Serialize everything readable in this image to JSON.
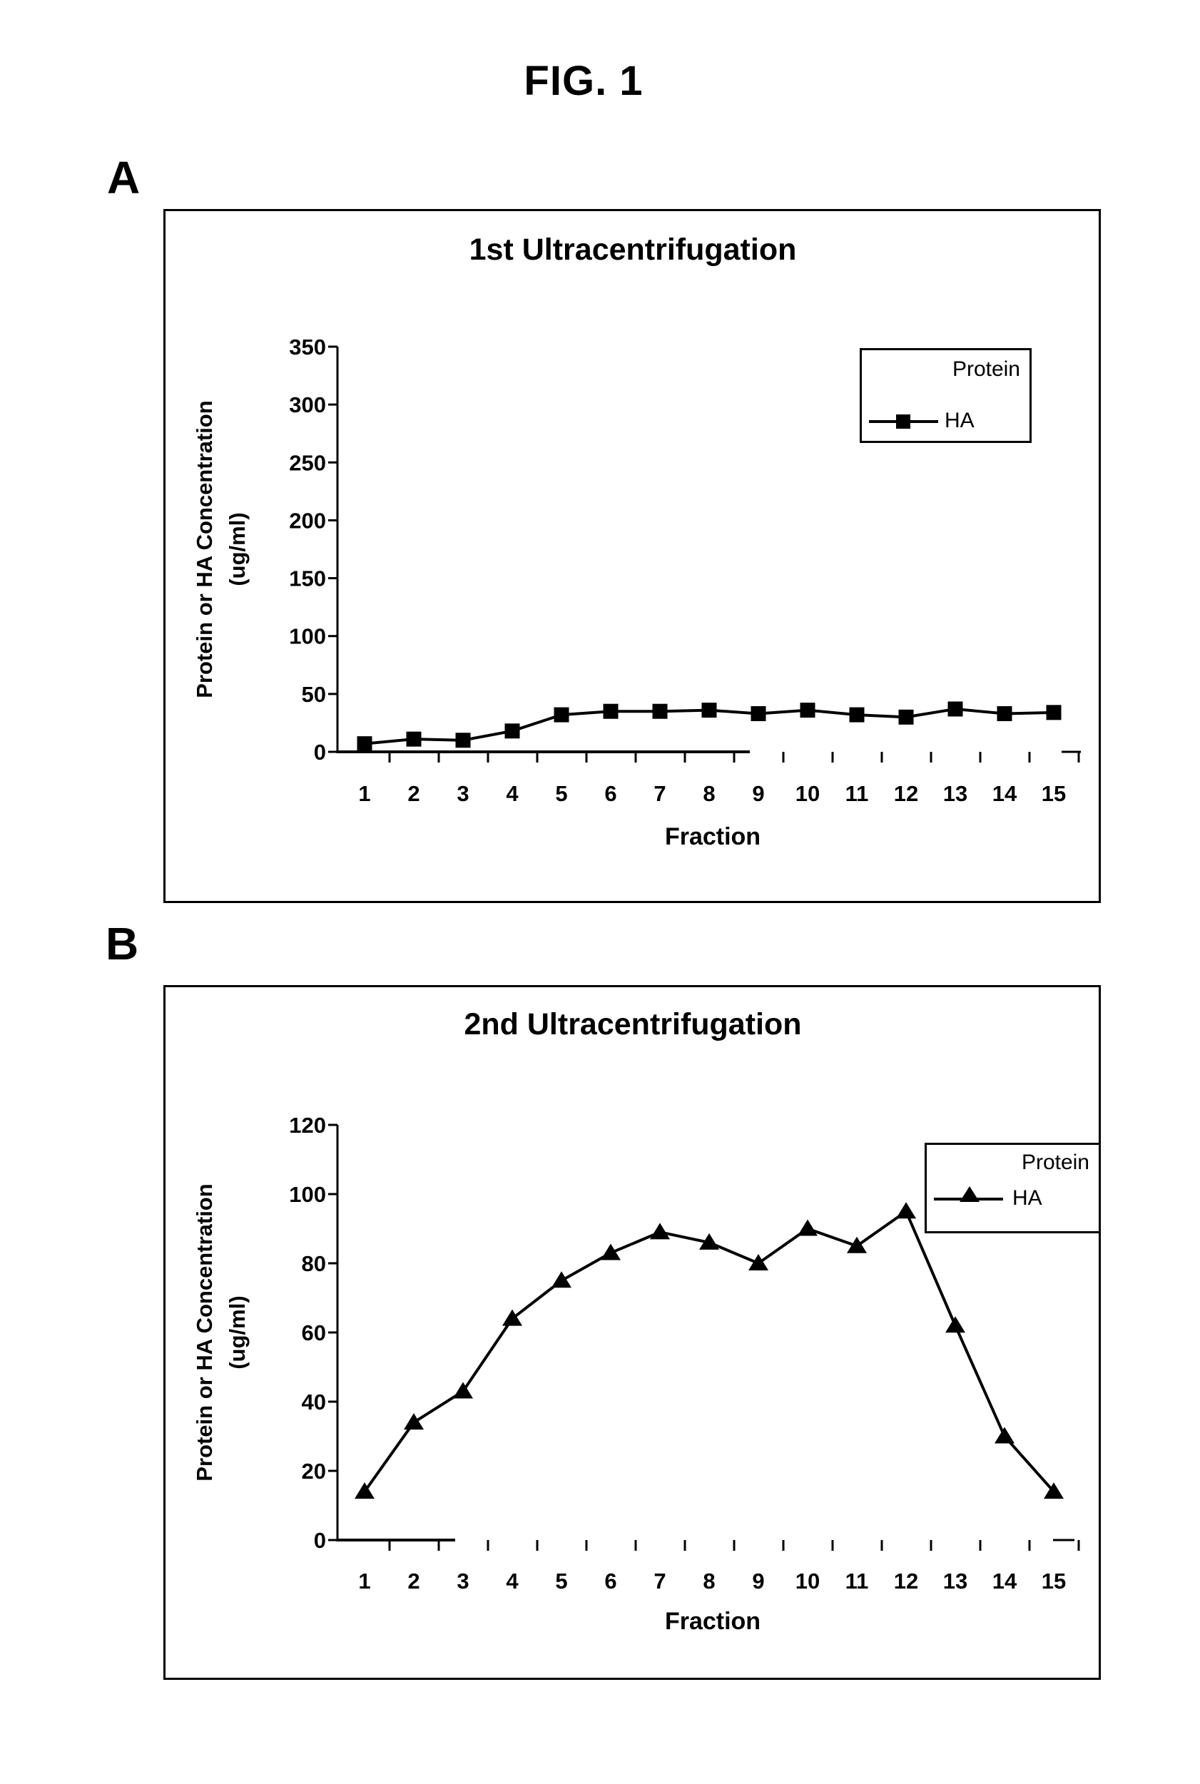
{
  "figure": {
    "title": "FIG. 1"
  },
  "chart_data": [
    {
      "type": "line",
      "panel_label": "A",
      "title": "1st Ultracentrifugation",
      "xlabel": "Fraction",
      "ylabel_line1": "Protein or HA Concentration",
      "ylabel_line2": "(ug/ml)",
      "categories": [
        1,
        2,
        3,
        4,
        5,
        6,
        7,
        8,
        9,
        10,
        11,
        12,
        13,
        14,
        15
      ],
      "yticks": [
        0,
        50,
        100,
        150,
        200,
        250,
        300,
        350
      ],
      "ylim": [
        0,
        350
      ],
      "grid": false,
      "legend_position": "upper-right",
      "legend_entries": [
        {
          "label": "Protein",
          "marker": "none"
        },
        {
          "label": "HA",
          "marker": "square"
        }
      ],
      "series": [
        {
          "name": "HA",
          "marker": "square",
          "values": [
            7,
            11,
            10,
            18,
            32,
            35,
            35,
            36,
            33,
            36,
            32,
            30,
            37,
            33,
            34
          ]
        }
      ]
    },
    {
      "type": "line",
      "panel_label": "B",
      "title": "2nd Ultracentrifugation",
      "xlabel": "Fraction",
      "ylabel_line1": "Protein or HA Concentration",
      "ylabel_line2": "(ug/ml)",
      "categories": [
        1,
        2,
        3,
        4,
        5,
        6,
        7,
        8,
        9,
        10,
        11,
        12,
        13,
        14,
        15
      ],
      "yticks": [
        0,
        20,
        40,
        60,
        80,
        100,
        120
      ],
      "ylim": [
        0,
        120
      ],
      "grid": false,
      "legend_position": "upper-right",
      "legend_entries": [
        {
          "label": "Protein",
          "marker": "none"
        },
        {
          "label": "HA",
          "marker": "triangle"
        }
      ],
      "series": [
        {
          "name": "HA",
          "marker": "triangle",
          "values": [
            14,
            34,
            43,
            64,
            75,
            83,
            89,
            86,
            80,
            90,
            85,
            95,
            62,
            30,
            14
          ]
        }
      ]
    }
  ]
}
